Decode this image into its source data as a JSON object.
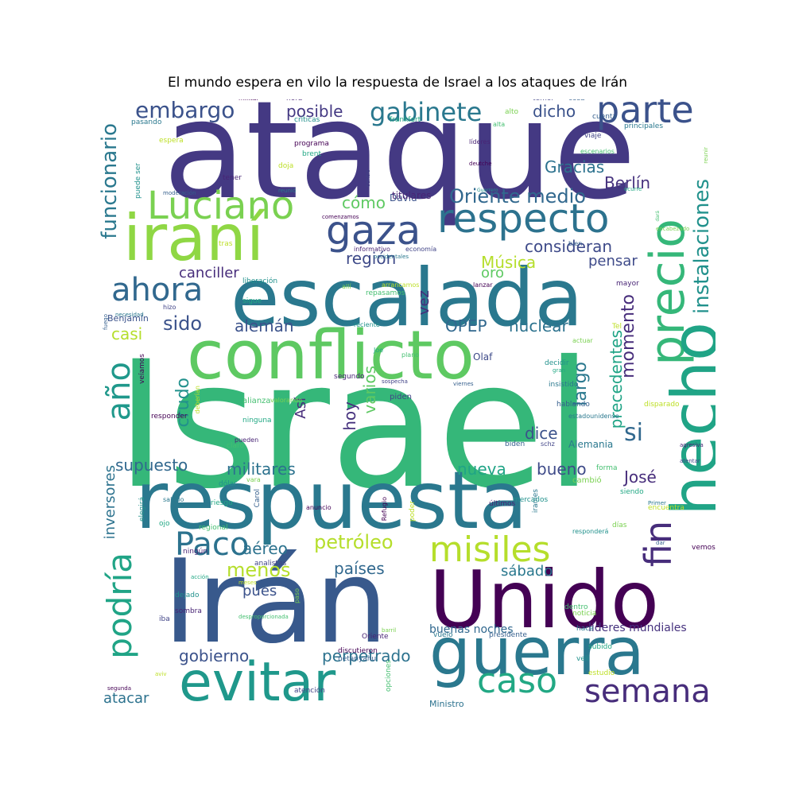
{
  "figure": {
    "title": "El mundo espera en vilo la respuesta de Israel a los ataques de Irán"
  },
  "wordcloud": {
    "words": [
      {
        "text": "ataque",
        "color": "#443983"
      },
      {
        "text": "Israel",
        "color": "#35b779"
      },
      {
        "text": "respuesta",
        "color": "#2a788e"
      },
      {
        "text": "Irán",
        "color": "#38598c"
      },
      {
        "text": "escalada",
        "color": "#2a788e"
      },
      {
        "text": "precio",
        "color": "#35b779"
      },
      {
        "text": "hecho",
        "color": "#20a486"
      },
      {
        "text": "conflicto",
        "color": "#5ec962"
      },
      {
        "text": "iraní",
        "color": "#8fd744"
      },
      {
        "text": "Unido",
        "color": "#440154"
      },
      {
        "text": "guerra",
        "color": "#2a788e"
      },
      {
        "text": "evitar",
        "color": "#1f988b"
      },
      {
        "text": "respecto",
        "color": "#2c728e"
      },
      {
        "text": "parte",
        "color": "#3b528b"
      },
      {
        "text": "gaza",
        "color": "#3b528b"
      },
      {
        "text": "Luciano",
        "color": "#7ad151"
      },
      {
        "text": "misiles",
        "color": "#b5de2b"
      },
      {
        "text": "Paco",
        "color": "#2c728e"
      },
      {
        "text": "fin",
        "color": "#472d7b"
      },
      {
        "text": "caso",
        "color": "#22a884"
      },
      {
        "text": "semana",
        "color": "#472d7b"
      },
      {
        "text": "podría",
        "color": "#20a486"
      },
      {
        "text": "ahora",
        "color": "#31688e"
      },
      {
        "text": "año",
        "color": "#1f988b"
      },
      {
        "text": "gabinete",
        "color": "#2a788e"
      },
      {
        "text": "embargo",
        "color": "#3b528b"
      },
      {
        "text": "funcionario",
        "color": "#2a788e"
      },
      {
        "text": "instalaciones",
        "color": "#21918c"
      },
      {
        "text": "Oriente medio",
        "color": "#31688e"
      },
      {
        "text": "posible",
        "color": "#443983"
      },
      {
        "text": "dicho",
        "color": "#3b528b"
      },
      {
        "text": "Gracias",
        "color": "#2c728e"
      },
      {
        "text": "Berlín",
        "color": "#46327e"
      },
      {
        "text": "cómo",
        "color": "#5ec962"
      },
      {
        "text": "consideran",
        "color": "#3e4a89"
      },
      {
        "text": "región",
        "color": "#3e4a89"
      },
      {
        "text": "Música",
        "color": "#b5de2b"
      },
      {
        "text": "pensar",
        "color": "#3e4a89"
      },
      {
        "text": "canciller",
        "color": "#472d7b"
      },
      {
        "text": "sido",
        "color": "#3b528b"
      },
      {
        "text": "alemán",
        "color": "#3b528b"
      },
      {
        "text": "OPEP",
        "color": "#31688e"
      },
      {
        "text": "nuclear",
        "color": "#2c728e"
      },
      {
        "text": "momento",
        "color": "#472d7b"
      },
      {
        "text": "precedentes",
        "color": "#20a486"
      },
      {
        "text": "largo",
        "color": "#2a788e"
      },
      {
        "text": "si",
        "color": "#31688e"
      },
      {
        "text": "crudo",
        "color": "#21918c"
      },
      {
        "text": "casi",
        "color": "#b5de2b"
      },
      {
        "text": "Así",
        "color": "#472d7b"
      },
      {
        "text": "hoy",
        "color": "#46327e"
      },
      {
        "text": "varios",
        "color": "#5ec962"
      },
      {
        "text": "dice",
        "color": "#3b528b"
      },
      {
        "text": "supuesto",
        "color": "#31688e"
      },
      {
        "text": "militares",
        "color": "#2c728e"
      },
      {
        "text": "nueva",
        "color": "#20a486"
      },
      {
        "text": "bueno",
        "color": "#3e4a89"
      },
      {
        "text": "José",
        "color": "#472d7b"
      },
      {
        "text": "petróleo",
        "color": "#b5de2b"
      },
      {
        "text": "aéreo",
        "color": "#2c728e"
      },
      {
        "text": "menos",
        "color": "#b5de2b"
      },
      {
        "text": "países",
        "color": "#31688e"
      },
      {
        "text": "sábado",
        "color": "#2a788e"
      },
      {
        "text": "pues",
        "color": "#3b528b"
      },
      {
        "text": "gobierno",
        "color": "#3b528b"
      },
      {
        "text": "perpetrado",
        "color": "#2c728e"
      },
      {
        "text": "atacar",
        "color": "#2c728e"
      },
      {
        "text": "inversores",
        "color": "#2c728e"
      },
      {
        "text": "vez",
        "color": "#472d7b"
      },
      {
        "text": "oro",
        "color": "#5ec962"
      },
      {
        "text": "David",
        "color": "#3b528b"
      },
      {
        "text": "titulares",
        "color": "#482475"
      },
      {
        "text": "Olaf",
        "color": "#3e4a89"
      },
      {
        "text": "Alemania",
        "color": "#2a788e"
      },
      {
        "text": "Benjamín",
        "color": "#3b528b"
      },
      {
        "text": "líderes mundiales",
        "color": "#46327e"
      },
      {
        "text": "buenas noches",
        "color": "#31688e"
      },
      {
        "text": "Ministro",
        "color": "#2c728e"
      }
    ],
    "small_words": [
      "militar",
      "hora",
      "temor",
      "cosa",
      "pasando",
      "críticas",
      "frankfort",
      "alta",
      "alto",
      "espera",
      "programa",
      "líderes",
      "viaje",
      "cuenta",
      "principales",
      "puede ser",
      "brent",
      "escenarios",
      "reunir",
      "doja",
      "deutche",
      "tener",
      "centro",
      "moderación",
      "reunió",
      "Guerrero",
      "ocurre",
      "dará",
      "encabezado",
      "tras",
      "comenzamos",
      "informativo",
      "economía",
      "bien",
      "occidentales",
      "liberación",
      "sigue",
      "repasamos",
      "allí",
      "arrancamos",
      "lanzar",
      "mayor",
      "hizo",
      "fuego",
      "necesidad",
      "reciente",
      "Joe",
      "plano",
      "actuar",
      "Tel",
      "veíamos",
      "segundo",
      "sospecha",
      "viernes",
      "insistido",
      "decidir",
      "gran",
      "alianza",
      "valorando",
      "deberían",
      "responder",
      "pueden",
      "piden",
      "hablando",
      "estadounidense",
      "dólar",
      "ninguna",
      "claro",
      "vara",
      "disparado",
      "mundo",
      "agresiva",
      "atentar",
      "Carol",
      "saludo",
      "elegirá",
      "riesgo",
      "forma",
      "cambió",
      "encuentra",
      "anuncio",
      "últimos",
      "schz",
      "dar",
      "Primer",
      "responderá",
      "ojo",
      "regional",
      "días",
      "poder",
      "vemos",
      "ningún",
      "analistas",
      "biden",
      "iraníes",
      "dejado",
      "acción",
      "desproporcionada",
      "paso",
      "meses",
      "Refugio",
      "sombra",
      "iba",
      "presidente",
      "vuelo",
      "velí",
      "subido",
      "opciones",
      "barril",
      "aviv",
      "discutieron",
      "Oriente",
      "atención",
      "netanyahu",
      "hace",
      "mercados",
      "siendo",
      "dentro",
      "noticia",
      "estudio",
      "segunda"
    ]
  }
}
